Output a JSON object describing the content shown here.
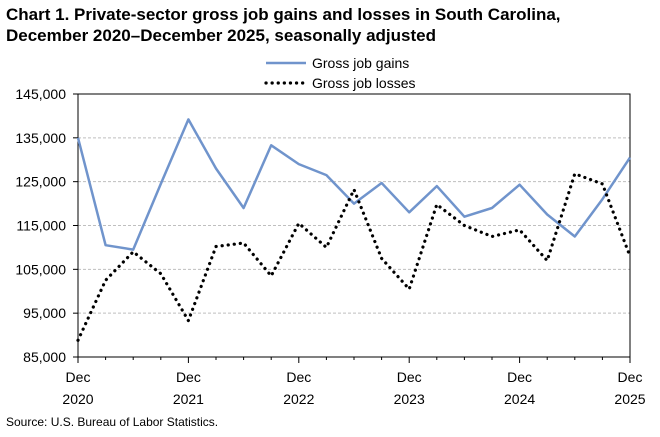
{
  "title_line1": "Chart 1. Private-sector gross job gains and losses in South Carolina,",
  "title_line2": "December 2020–December 2025, seasonally adjusted",
  "source": "Source: U.S. Bureau of Labor Statistics.",
  "chart_data": {
    "type": "line",
    "title": "Chart 1. Private-sector gross job gains and losses in South Carolina, December 2020–December 2025, seasonally adjusted",
    "xlabel": "",
    "ylabel": "",
    "ylim": [
      85000,
      145000
    ],
    "yticks": [
      "85,000",
      "95,000",
      "105,000",
      "115,000",
      "125,000",
      "135,000",
      "145,000"
    ],
    "yticks_values": [
      85000,
      95000,
      105000,
      115000,
      125000,
      135000,
      145000
    ],
    "xtick_labels": [
      {
        "month": "Dec",
        "year": "2020",
        "index": 0
      },
      {
        "month": "Dec",
        "year": "2021",
        "index": 4
      },
      {
        "month": "Dec",
        "year": "2022",
        "index": 8
      },
      {
        "month": "Dec",
        "year": "2023",
        "index": 12
      },
      {
        "month": "Dec",
        "year": "2024",
        "index": 16
      },
      {
        "month": "Dec",
        "year": "2025",
        "index": 20
      }
    ],
    "x": [
      "Dec 2020",
      "Mar 2021",
      "Jun 2021",
      "Sep 2021",
      "Dec 2021",
      "Mar 2022",
      "Jun 2022",
      "Sep 2022",
      "Dec 2022",
      "Mar 2023",
      "Jun 2023",
      "Sep 2023",
      "Dec 2023",
      "Mar 2024",
      "Jun 2024",
      "Sep 2024",
      "Dec 2024",
      "Mar 2025",
      "Jun 2025",
      "Sep 2025",
      "Dec 2025"
    ],
    "grid": true,
    "legend_position": "top",
    "series": [
      {
        "name": "Gross job gains",
        "color": "#7094cc",
        "style": "solid",
        "values": [
          135000,
          110500,
          109500,
          124500,
          139200,
          128000,
          119000,
          133300,
          129000,
          126500,
          120000,
          124700,
          118000,
          124000,
          117000,
          119000,
          124300,
          117500,
          112500,
          121000,
          130500
        ]
      },
      {
        "name": "Gross job losses",
        "color": "#000000",
        "style": "dotted",
        "values": [
          88800,
          102500,
          109000,
          104000,
          93300,
          110200,
          111000,
          103500,
          115500,
          110000,
          123200,
          107500,
          100500,
          119800,
          115000,
          112500,
          114000,
          107000,
          126800,
          124500,
          108000
        ]
      }
    ]
  }
}
